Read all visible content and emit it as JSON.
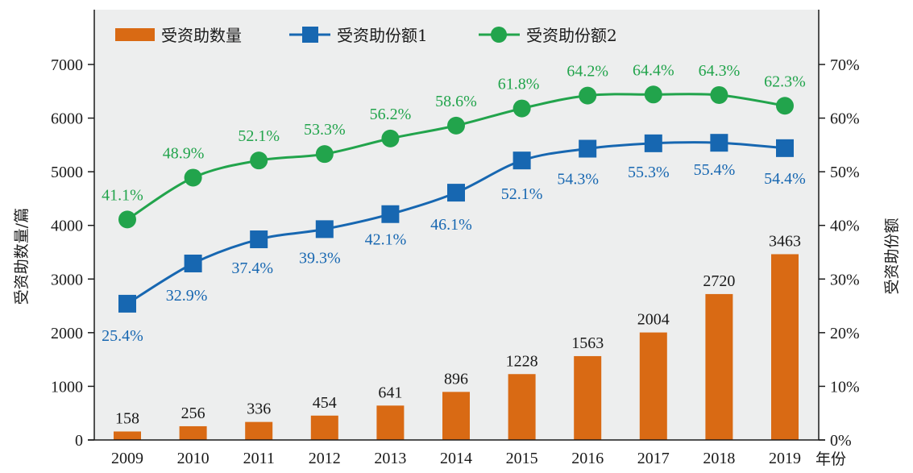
{
  "chart_data": {
    "type": "bar+line",
    "categories": [
      "2009",
      "2010",
      "2011",
      "2012",
      "2013",
      "2014",
      "2015",
      "2016",
      "2017",
      "2018",
      "2019"
    ],
    "xlabel": "年份",
    "ylabel_left": "受资助数量/篇",
    "ylabel_right": "受资助份额",
    "ylim_left": [
      0,
      8000
    ],
    "ylim_right": [
      0,
      80
    ],
    "yticks_left": [
      "0",
      "1000",
      "2000",
      "3000",
      "4000",
      "5000",
      "6000",
      "7000"
    ],
    "yticks_right": [
      "0%",
      "10%",
      "20%",
      "30%",
      "40%",
      "50%",
      "60%",
      "70%"
    ],
    "legend_position": "top-left",
    "series": [
      {
        "name": "受资助数量",
        "kind": "bar",
        "axis": "left",
        "color": "#d96a14",
        "values": [
          158,
          256,
          336,
          454,
          641,
          896,
          1228,
          1563,
          2004,
          2720,
          3463
        ],
        "labels": [
          "158",
          "256",
          "336",
          "454",
          "641",
          "896",
          "1228",
          "1563",
          "2004",
          "2720",
          "3463"
        ]
      },
      {
        "name": "受资助份额1",
        "kind": "line",
        "marker": "square",
        "axis": "right",
        "color": "#1767b1",
        "values": [
          25.4,
          32.9,
          37.4,
          39.3,
          42.1,
          46.1,
          52.1,
          54.3,
          55.3,
          55.4,
          54.4
        ],
        "labels": [
          "25.4%",
          "32.9%",
          "37.4%",
          "39.3%",
          "42.1%",
          "46.1%",
          "52.1%",
          "54.3%",
          "55.3%",
          "55.4%",
          "54.4%"
        ]
      },
      {
        "name": "受资助份额2",
        "kind": "line",
        "marker": "circle",
        "axis": "right",
        "color": "#22a44c",
        "values": [
          41.1,
          48.9,
          52.1,
          53.3,
          56.2,
          58.6,
          61.8,
          64.2,
          64.4,
          64.3,
          62.3
        ],
        "labels": [
          "41.1%",
          "48.9%",
          "52.1%",
          "53.3%",
          "56.2%",
          "58.6%",
          "61.8%",
          "64.2%",
          "64.4%",
          "64.3%",
          "62.3%"
        ]
      }
    ]
  },
  "colors": {
    "plot_background": "#edeeee",
    "axis": "#1a1a1a"
  }
}
